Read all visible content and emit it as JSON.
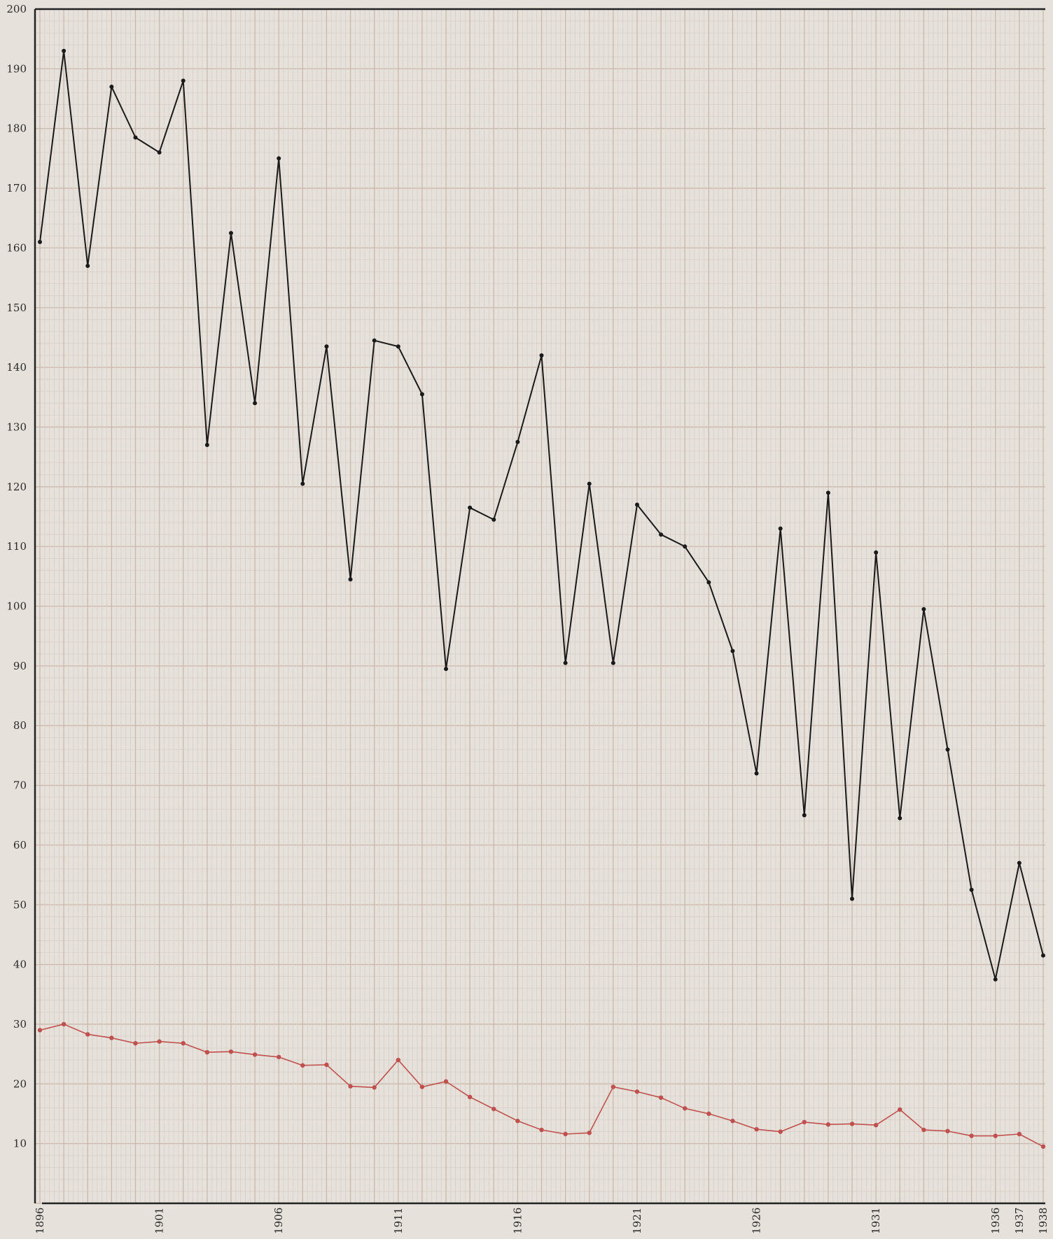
{
  "chart_data": {
    "type": "line",
    "title": "",
    "xlabel": "",
    "ylabel": "",
    "x": [
      1896,
      1897,
      1898,
      1899,
      1900,
      1901,
      1902,
      1903,
      1904,
      1905,
      1906,
      1907,
      1908,
      1909,
      1910,
      1911,
      1912,
      1913,
      1914,
      1915,
      1916,
      1917,
      1918,
      1919,
      1920,
      1921,
      1922,
      1923,
      1924,
      1925,
      1926,
      1927,
      1928,
      1929,
      1930,
      1931,
      1932,
      1933,
      1934,
      1935,
      1936,
      1937,
      1938
    ],
    "xlim": [
      1896,
      1938
    ],
    "ylim": [
      0,
      200
    ],
    "yticks": [
      10,
      20,
      30,
      40,
      50,
      60,
      70,
      80,
      90,
      100,
      110,
      120,
      130,
      140,
      150,
      160,
      170,
      180,
      190,
      200
    ],
    "xticks": [
      1896,
      1901,
      1906,
      1911,
      1916,
      1921,
      1926,
      1931,
      1936,
      1937,
      1938
    ],
    "grid": true,
    "series": [
      {
        "name": "",
        "color": "#1a1a1a",
        "values": [
          161,
          193,
          157,
          187,
          178.5,
          176,
          188,
          127,
          162.5,
          134,
          175,
          120.5,
          143.5,
          104.5,
          144.5,
          143.5,
          135.5,
          89.5,
          116.5,
          114.5,
          127.5,
          142,
          90.5,
          120.5,
          90.5,
          117,
          112,
          110,
          104,
          92.5,
          72,
          113,
          65,
          119,
          51,
          109,
          64.5,
          99.5,
          76,
          52.5,
          37.5,
          57,
          41.5
        ]
      },
      {
        "name": "",
        "color": "#c0504d",
        "values": [
          29,
          30,
          28.3,
          27.7,
          26.8,
          27.1,
          26.8,
          25.3,
          25.4,
          24.9,
          24.5,
          23.1,
          23.2,
          19.6,
          19.4,
          24,
          19.5,
          20.4,
          17.8,
          15.8,
          13.8,
          12.3,
          11.6,
          11.8,
          19.5,
          18.7,
          17.7,
          15.9,
          15,
          13.8,
          12.4,
          12,
          13.6,
          13.2,
          13.3,
          13.1,
          15.7,
          12.3,
          12.1,
          11.3,
          11.3,
          11.6,
          9.5
        ]
      }
    ]
  }
}
